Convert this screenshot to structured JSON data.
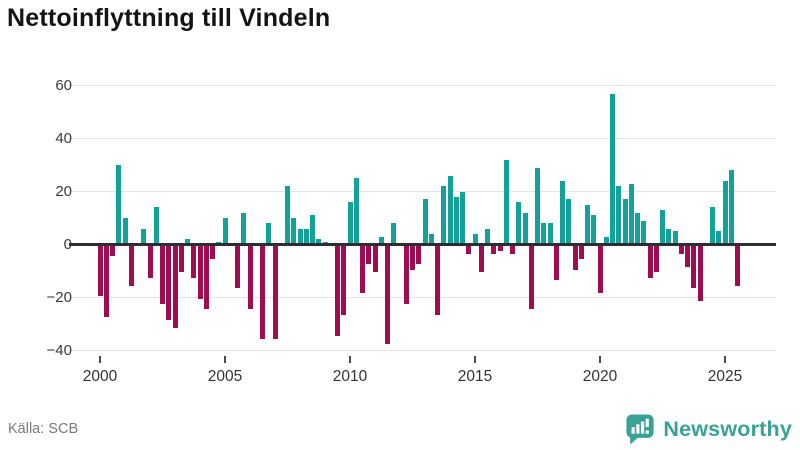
{
  "title": "Nettoinflyttning till Vindeln",
  "source": "Källa: SCB",
  "logo": {
    "text": "Newsworthy",
    "icon": "bar-chart-bubble-icon",
    "color": "#38a296"
  },
  "chart_data": {
    "type": "bar",
    "title": "Nettoinflyttning till Vindeln",
    "frequency": "quarterly",
    "x_start": "2000-Q1",
    "x_end": "2025-Q3",
    "values": [
      -19,
      -27,
      -4,
      30,
      10,
      -15,
      0,
      6,
      -12,
      14,
      -22,
      -28,
      -31,
      -10,
      2,
      -12,
      -20,
      -24,
      -5,
      1,
      10,
      0,
      -16,
      12,
      -24,
      0,
      -35,
      8,
      -35,
      0,
      22,
      10,
      6,
      6,
      11,
      2,
      1,
      0,
      -34,
      -26,
      16,
      25,
      -18,
      -7,
      -10,
      3,
      -37,
      8,
      0,
      -22,
      -9,
      -7,
      17,
      4,
      -26,
      22,
      26,
      18,
      20,
      -3,
      4,
      -10,
      6,
      -3,
      -2,
      32,
      -3,
      16,
      12,
      -24,
      29,
      8,
      8,
      -13,
      24,
      17,
      -9,
      -5,
      15,
      11,
      -18,
      3,
      57,
      22,
      17,
      23,
      12,
      9,
      -12,
      -10,
      13,
      6,
      5,
      -3,
      -8,
      -16,
      -21,
      0,
      14,
      5,
      24,
      28,
      -15
    ],
    "positive_color": "#12a29a",
    "negative_color": "#a10c50",
    "ylim": [
      -45,
      62
    ],
    "yticks": [
      -40,
      -20,
      0,
      20,
      40,
      60
    ],
    "xticks": [
      2000,
      2005,
      2010,
      2015,
      2020,
      2025
    ],
    "grid": true,
    "legend": false,
    "gridline_color": "#e4e4e4",
    "zero_axis_color": "#2e2e2e"
  }
}
